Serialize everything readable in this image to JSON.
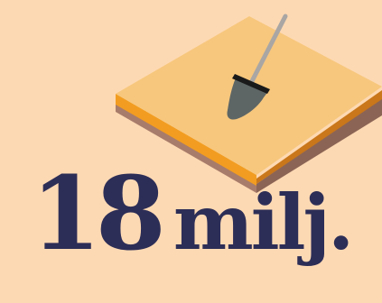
{
  "background_color": "#fdd9b3",
  "illustration": {
    "icon": "shovel-in-ground-icon",
    "colors": {
      "ground_top": "#f7c77d",
      "ground_front_orange": "#f29d21",
      "ground_side_orange": "#c9771a",
      "ground_front_brown": "#a87c6a",
      "ground_side_brown": "#8c6455",
      "shovel_handle": "#a9a6a4",
      "shovel_blade": "#5e6665",
      "shovel_collar": "#1a1a1a"
    }
  },
  "headline": {
    "number": "18",
    "unit": "milj.",
    "color": "#2d2e57"
  }
}
